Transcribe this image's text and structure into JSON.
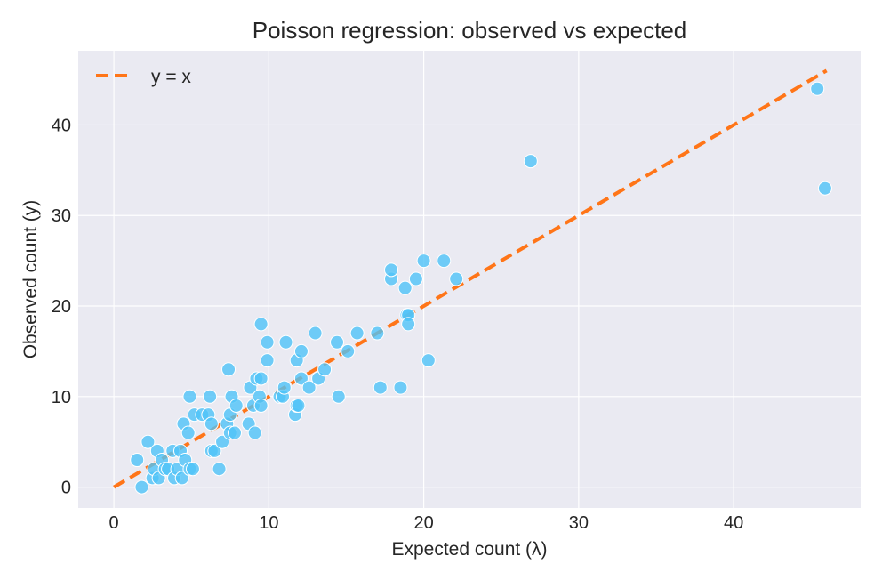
{
  "chart_data": {
    "type": "scatter",
    "title": "Poisson regression: observed vs expected",
    "xlabel": "Expected count (λ)",
    "ylabel": "Observed count (y)",
    "xlim": [
      -2.3,
      48.2
    ],
    "ylim": [
      -2.3,
      48.2
    ],
    "xticks": [
      0,
      10,
      20,
      30,
      40
    ],
    "yticks": [
      0,
      10,
      20,
      30,
      40
    ],
    "grid": true,
    "legend_position": "top-left",
    "colors": {
      "points": "#4fc3f7",
      "line": "#ff7518",
      "background": "#eaeaf2"
    },
    "reference_line": {
      "name": "y = x",
      "x": [
        0,
        46
      ],
      "y": [
        0,
        46
      ],
      "style": "dashed"
    },
    "points": [
      [
        1.5,
        3
      ],
      [
        1.8,
        0
      ],
      [
        2.2,
        5
      ],
      [
        2.5,
        1
      ],
      [
        2.6,
        2
      ],
      [
        2.8,
        4
      ],
      [
        2.9,
        1
      ],
      [
        3.1,
        3
      ],
      [
        3.3,
        2
      ],
      [
        3.5,
        2
      ],
      [
        3.8,
        4
      ],
      [
        3.9,
        1
      ],
      [
        4.1,
        2
      ],
      [
        4.3,
        4
      ],
      [
        4.4,
        1
      ],
      [
        4.6,
        3
      ],
      [
        4.5,
        7
      ],
      [
        4.8,
        6
      ],
      [
        4.9,
        10
      ],
      [
        4.9,
        2
      ],
      [
        5.1,
        2
      ],
      [
        5.2,
        8
      ],
      [
        5.7,
        8
      ],
      [
        6.1,
        8
      ],
      [
        6.2,
        10
      ],
      [
        6.3,
        7
      ],
      [
        6.3,
        4
      ],
      [
        6.5,
        4
      ],
      [
        6.8,
        2
      ],
      [
        7.0,
        5
      ],
      [
        7.3,
        7
      ],
      [
        7.4,
        13
      ],
      [
        7.5,
        6
      ],
      [
        7.5,
        8
      ],
      [
        7.6,
        10
      ],
      [
        7.8,
        6
      ],
      [
        7.9,
        9
      ],
      [
        8.7,
        7
      ],
      [
        8.8,
        11
      ],
      [
        9.0,
        9
      ],
      [
        9.1,
        6
      ],
      [
        9.2,
        12
      ],
      [
        9.4,
        10
      ],
      [
        9.5,
        12
      ],
      [
        9.5,
        9
      ],
      [
        9.5,
        18
      ],
      [
        9.9,
        16
      ],
      [
        9.9,
        14
      ],
      [
        10.7,
        10
      ],
      [
        10.9,
        10
      ],
      [
        11.0,
        11
      ],
      [
        11.1,
        16
      ],
      [
        11.7,
        8
      ],
      [
        11.8,
        9
      ],
      [
        11.8,
        14
      ],
      [
        11.9,
        9
      ],
      [
        12.1,
        12
      ],
      [
        12.1,
        15
      ],
      [
        12.6,
        11
      ],
      [
        13.0,
        17
      ],
      [
        13.2,
        12
      ],
      [
        13.6,
        13
      ],
      [
        14.4,
        16
      ],
      [
        14.5,
        10
      ],
      [
        15.1,
        15
      ],
      [
        15.7,
        17
      ],
      [
        17.0,
        17
      ],
      [
        17.2,
        11
      ],
      [
        17.9,
        23
      ],
      [
        17.9,
        24
      ],
      [
        18.5,
        11
      ],
      [
        18.8,
        22
      ],
      [
        18.9,
        19
      ],
      [
        19.0,
        19
      ],
      [
        19.0,
        18
      ],
      [
        19.5,
        23
      ],
      [
        20.0,
        25
      ],
      [
        20.3,
        14
      ],
      [
        21.3,
        25
      ],
      [
        22.1,
        23
      ],
      [
        26.9,
        36
      ],
      [
        45.4,
        44
      ],
      [
        45.9,
        33
      ]
    ]
  }
}
